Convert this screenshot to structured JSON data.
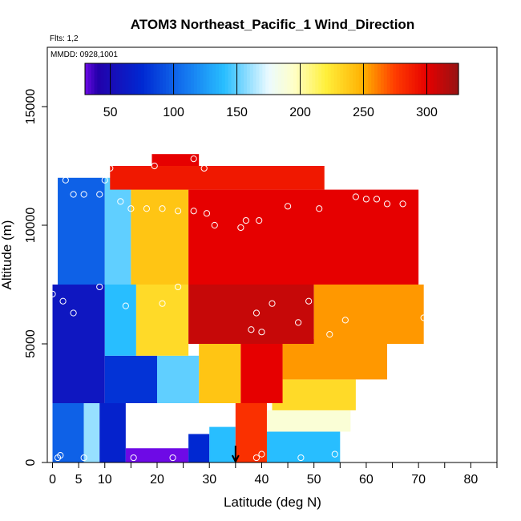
{
  "chart_data": {
    "type": "heatmap",
    "title": "ATOM3 Northeast_Pacific_1 Wind_Direction",
    "flights_label": "Flts: 1,2",
    "dates_label": "MMDD: 0928,1001",
    "xlabel": "Latitude (deg N)",
    "ylabel": "Altitude (m)",
    "xlim": [
      -1,
      85
    ],
    "ylim": [
      0,
      17500
    ],
    "x_ticks": [
      0,
      5,
      10,
      20,
      30,
      40,
      50,
      60,
      70,
      80
    ],
    "x_minor_ticks": [
      15,
      25,
      35,
      45,
      55,
      65,
      75,
      85
    ],
    "y_ticks": [
      0,
      5000,
      10000,
      15000
    ],
    "colorbar": {
      "min": 30,
      "max": 325,
      "ticks": [
        50,
        100,
        150,
        200,
        250,
        300
      ]
    },
    "arrow_marker": {
      "x": 35,
      "label": ""
    },
    "regions": [
      {
        "x0": 0,
        "x1": 6,
        "y0": 0,
        "y1": 2500,
        "value": 100
      },
      {
        "x0": 6,
        "x1": 9,
        "y0": 0,
        "y1": 2500,
        "value": 160
      },
      {
        "x0": 9,
        "x1": 14,
        "y0": 0,
        "y1": 2500,
        "value": 70
      },
      {
        "x0": 14,
        "x1": 26,
        "y0": 0,
        "y1": 600,
        "value": 30
      },
      {
        "x0": 26,
        "x1": 30,
        "y0": 0,
        "y1": 1200,
        "value": 75
      },
      {
        "x0": 30,
        "x1": 35,
        "y0": 0,
        "y1": 1500,
        "value": 140
      },
      {
        "x0": 35,
        "x1": 41,
        "y0": 0,
        "y1": 2500,
        "value": 280
      },
      {
        "x0": 41,
        "x1": 55,
        "y0": 0,
        "y1": 1300,
        "value": 140
      },
      {
        "x0": 41,
        "x1": 57,
        "y0": 1300,
        "y1": 2200,
        "value": 190
      },
      {
        "x0": 42,
        "x1": 58,
        "y0": 2200,
        "y1": 3500,
        "value": 230
      },
      {
        "x0": 44,
        "x1": 64,
        "y0": 3500,
        "y1": 5200,
        "value": 255
      },
      {
        "x0": 0,
        "x1": 10,
        "y0": 2500,
        "y1": 7500,
        "value": 60
      },
      {
        "x0": 10,
        "x1": 20,
        "y0": 2500,
        "y1": 4500,
        "value": 80
      },
      {
        "x0": 20,
        "x1": 28,
        "y0": 2500,
        "y1": 4500,
        "value": 150
      },
      {
        "x0": 28,
        "x1": 36,
        "y0": 2500,
        "y1": 5000,
        "value": 240
      },
      {
        "x0": 36,
        "x1": 44,
        "y0": 2500,
        "y1": 5000,
        "value": 300
      },
      {
        "x0": 10,
        "x1": 16,
        "y0": 4500,
        "y1": 7500,
        "value": 140
      },
      {
        "x0": 16,
        "x1": 26,
        "y0": 4500,
        "y1": 7500,
        "value": 230
      },
      {
        "x0": 26,
        "x1": 50,
        "y0": 5000,
        "y1": 7500,
        "value": 310
      },
      {
        "x0": 50,
        "x1": 71,
        "y0": 5000,
        "y1": 7500,
        "value": 255
      },
      {
        "x0": 1,
        "x1": 10,
        "y0": 7500,
        "y1": 12000,
        "value": 100
      },
      {
        "x0": 10,
        "x1": 15,
        "y0": 7500,
        "y1": 12000,
        "value": 150
      },
      {
        "x0": 15,
        "x1": 26,
        "y0": 7500,
        "y1": 12000,
        "value": 240
      },
      {
        "x0": 26,
        "x1": 70,
        "y0": 7500,
        "y1": 11500,
        "value": 300
      },
      {
        "x0": 11,
        "x1": 52,
        "y0": 11500,
        "y1": 12500,
        "value": 290
      },
      {
        "x0": 19,
        "x1": 28,
        "y0": 12500,
        "y1": 13000,
        "value": 300
      }
    ],
    "points": [
      {
        "x": 0,
        "y": 7100
      },
      {
        "x": 2,
        "y": 6800
      },
      {
        "x": 4,
        "y": 6300
      },
      {
        "x": 1,
        "y": 200
      },
      {
        "x": 1.5,
        "y": 300
      },
      {
        "x": 6,
        "y": 200
      },
      {
        "x": 2.5,
        "y": 11900
      },
      {
        "x": 4,
        "y": 11300
      },
      {
        "x": 6,
        "y": 11300
      },
      {
        "x": 9,
        "y": 11300
      },
      {
        "x": 10,
        "y": 11900
      },
      {
        "x": 11,
        "y": 12400
      },
      {
        "x": 13,
        "y": 11000
      },
      {
        "x": 15,
        "y": 10700
      },
      {
        "x": 19.5,
        "y": 12500
      },
      {
        "x": 18,
        "y": 10700
      },
      {
        "x": 21,
        "y": 10700
      },
      {
        "x": 24,
        "y": 10600
      },
      {
        "x": 27,
        "y": 12800
      },
      {
        "x": 29,
        "y": 12400
      },
      {
        "x": 27,
        "y": 10600
      },
      {
        "x": 29.5,
        "y": 10500
      },
      {
        "x": 31,
        "y": 10000
      },
      {
        "x": 36,
        "y": 9900
      },
      {
        "x": 37,
        "y": 10200
      },
      {
        "x": 39.5,
        "y": 10200
      },
      {
        "x": 45,
        "y": 10800
      },
      {
        "x": 51,
        "y": 10700
      },
      {
        "x": 58,
        "y": 11200
      },
      {
        "x": 60,
        "y": 11100
      },
      {
        "x": 62,
        "y": 11100
      },
      {
        "x": 64,
        "y": 10900
      },
      {
        "x": 67,
        "y": 10900
      },
      {
        "x": 9,
        "y": 7400
      },
      {
        "x": 14,
        "y": 6600
      },
      {
        "x": 21,
        "y": 6700
      },
      {
        "x": 24,
        "y": 7400
      },
      {
        "x": 38,
        "y": 5600
      },
      {
        "x": 40,
        "y": 5500
      },
      {
        "x": 39,
        "y": 6300
      },
      {
        "x": 42,
        "y": 6700
      },
      {
        "x": 47,
        "y": 5900
      },
      {
        "x": 49,
        "y": 6800
      },
      {
        "x": 53,
        "y": 5400
      },
      {
        "x": 56,
        "y": 6000
      },
      {
        "x": 71,
        "y": 6100
      },
      {
        "x": 15.5,
        "y": 200
      },
      {
        "x": 23,
        "y": 200
      },
      {
        "x": 39,
        "y": 200
      },
      {
        "x": 40,
        "y": 350
      },
      {
        "x": 47.5,
        "y": 200
      },
      {
        "x": 54,
        "y": 350
      }
    ]
  }
}
